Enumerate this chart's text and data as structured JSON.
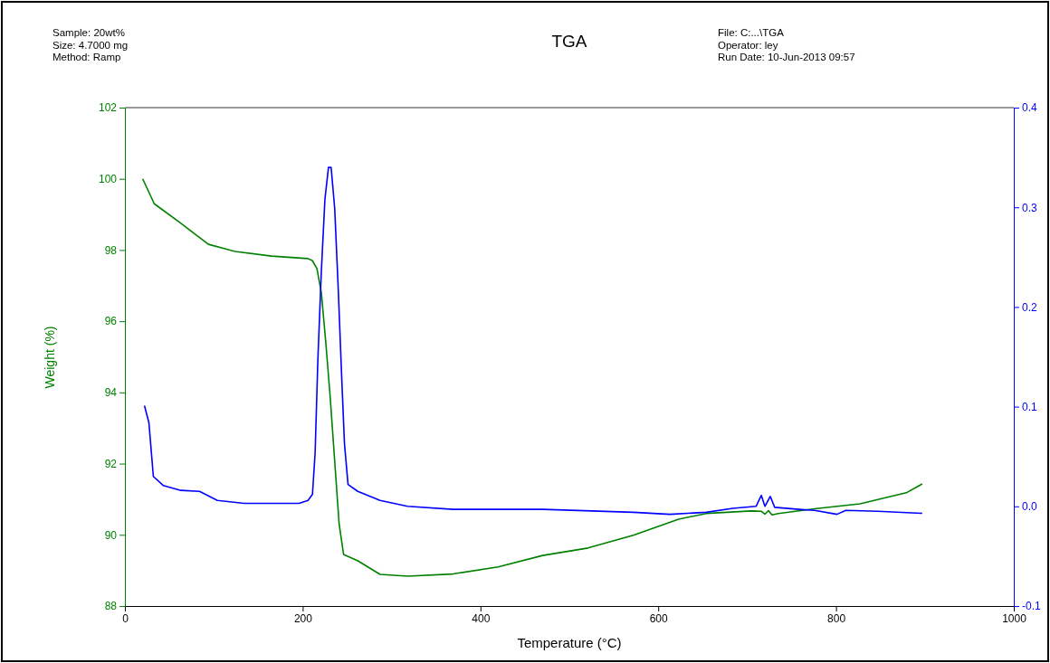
{
  "chart_data": {
    "type": "line",
    "title": "TGA",
    "xlabel": "Temperature (°C)",
    "ylabel": "Weight (%)",
    "annotations": [
      "Sample: 20wt%",
      "Size:  4.7000 mg",
      "Method: Ramp",
      "File: C:...\\TGA",
      "Operator: ley",
      "Run Date: 10-Jun-2013 09:57"
    ],
    "xlim": [
      0,
      1000
    ],
    "xticks": [
      0,
      200,
      400,
      600,
      800,
      1000
    ],
    "ylim": [
      88,
      102
    ],
    "yticks": [
      88,
      90,
      92,
      94,
      96,
      98,
      100,
      102
    ],
    "y2lim": [
      -0.1,
      0.4
    ],
    "y2ticks": [
      {
        "value": -0.1,
        "label": "-0.1"
      },
      {
        "value": 0,
        "label": "0.0"
      },
      {
        "value": 0.1,
        "label": "0.1"
      },
      {
        "value": 0.2,
        "label": "0.2"
      },
      {
        "value": 0.3,
        "label": "0.3"
      },
      {
        "value": 0.4,
        "label": "0.4"
      }
    ],
    "grid": false,
    "line_style": "solid",
    "marker": "none",
    "series": [
      {
        "color": "#008000",
        "x": [
          20,
          33,
          63,
          94,
          124,
          165,
          206,
          211,
          216,
          221,
          226,
          231,
          236,
          241,
          246,
          262,
          287,
          318,
          369,
          420,
          470,
          521,
          572,
          623,
          654,
          705,
          716,
          720,
          724,
          728,
          735,
          776,
          827,
          879,
          897
        ],
        "values": [
          100,
          99.3,
          98.75,
          98.16,
          97.96,
          97.83,
          97.76,
          97.7,
          97.48,
          96.8,
          95.4,
          93.85,
          92.07,
          90.3,
          89.45,
          89.27,
          88.89,
          88.84,
          88.9,
          89.1,
          89.42,
          89.63,
          89.99,
          90.44,
          90.6,
          90.67,
          90.66,
          90.58,
          90.68,
          90.56,
          90.6,
          90.73,
          90.87,
          91.18,
          91.43
        ]
      },
      {
        "color": "#0000ff",
        "axis": "y2",
        "x": [
          22,
          27,
          32,
          43,
          63,
          84,
          104,
          134,
          165,
          196,
          206,
          211,
          214,
          217,
          221,
          225,
          229,
          232,
          236,
          240,
          244,
          247,
          251,
          262,
          287,
          318,
          369,
          470,
          572,
          613,
          654,
          684,
          710,
          716,
          720,
          726,
          731,
          758,
          776,
          801,
          811,
          847,
          897
        ],
        "values": [
          0.101,
          0.084,
          0.03,
          0.021,
          0.016,
          0.015,
          0.006,
          0.003,
          0.003,
          0.003,
          0.006,
          0.012,
          0.054,
          0.145,
          0.236,
          0.308,
          0.34,
          0.34,
          0.299,
          0.218,
          0.127,
          0.063,
          0.022,
          0.015,
          0.006,
          0.0,
          -0.003,
          -0.003,
          -0.006,
          -0.008,
          -0.006,
          -0.002,
          0.0,
          0.011,
          0.0,
          0.01,
          -0.001,
          -0.003,
          -0.004,
          -0.008,
          -0.004,
          -0.005,
          -0.007
        ]
      }
    ]
  }
}
